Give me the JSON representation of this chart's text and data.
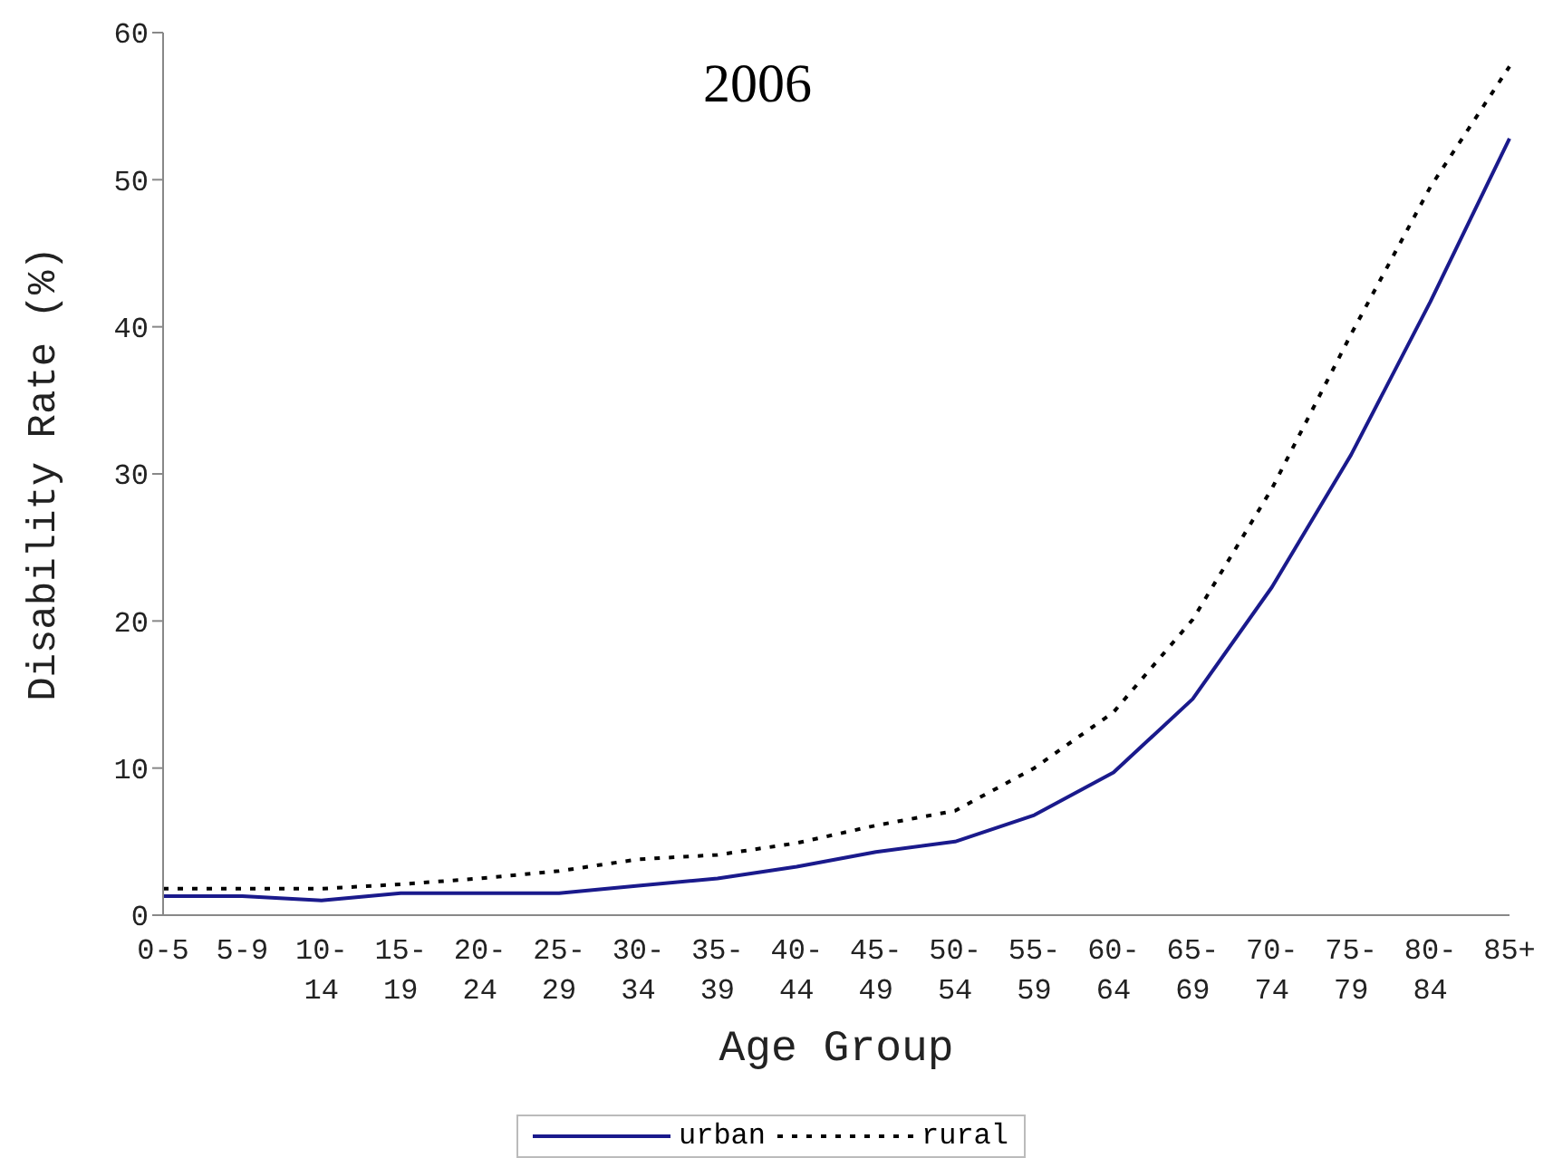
{
  "chart_data": {
    "type": "line",
    "title": "2006",
    "xlabel": "Age Group",
    "ylabel": "Disability Rate (%)",
    "categories": [
      "0-5",
      "5-9",
      "10-14",
      "15-19",
      "20-24",
      "25-29",
      "30-34",
      "35-39",
      "40-44",
      "45-49",
      "50-54",
      "55-59",
      "60-64",
      "65-69",
      "70-74",
      "75-79",
      "80-84",
      "85+"
    ],
    "series": [
      {
        "name": "urban",
        "color": "#1a1a8c",
        "line_style": "solid",
        "values": [
          1.3,
          1.3,
          1.0,
          1.5,
          1.5,
          1.5,
          2.0,
          2.5,
          3.3,
          4.3,
          5.0,
          6.8,
          9.7,
          14.7,
          22.3,
          31.3,
          41.7,
          52.8
        ]
      },
      {
        "name": "rural",
        "color": "#000000",
        "line_style": "dotted",
        "values": [
          1.8,
          1.8,
          1.8,
          2.1,
          2.5,
          3.0,
          3.8,
          4.1,
          4.9,
          6.1,
          7.1,
          10.0,
          13.8,
          20.1,
          29.0,
          39.5,
          49.5,
          57.7
        ]
      }
    ],
    "ylim": [
      0,
      60
    ],
    "yticks": [
      0,
      10,
      20,
      30,
      40,
      50,
      60
    ],
    "grid": false,
    "legend": "bottom",
    "marker": "none"
  }
}
